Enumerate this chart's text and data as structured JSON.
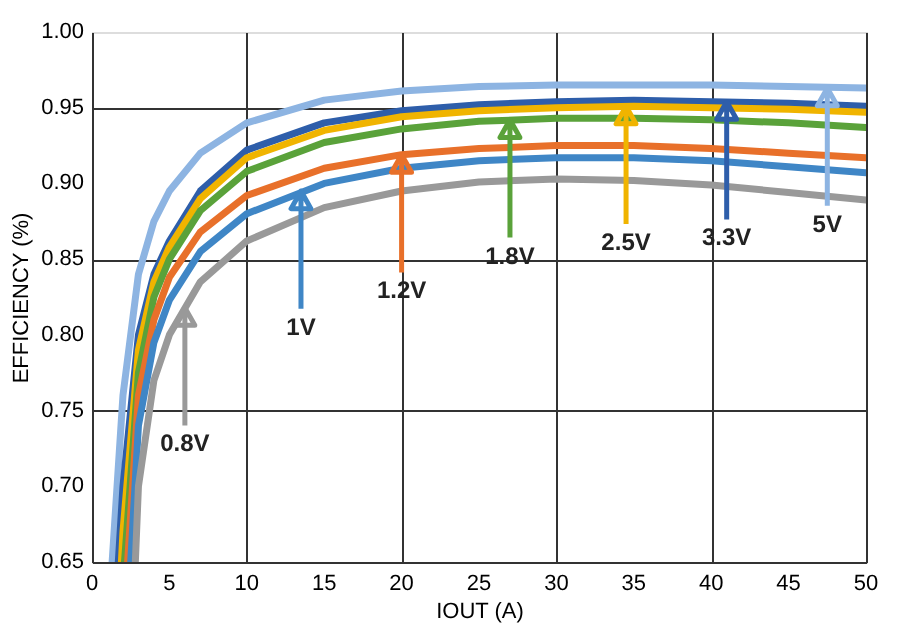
{
  "chart_data": {
    "type": "line",
    "xlabel": "IOUT (A)",
    "ylabel": "EFFICIENCY (%)",
    "xlim": [
      0,
      50
    ],
    "xticks": [
      0,
      5,
      10,
      15,
      20,
      25,
      30,
      35,
      40,
      45,
      50
    ],
    "ylim": [
      0.65,
      1.0
    ],
    "yticks": [
      0.65,
      {
        "value": 0.7,
        "label": "0.70"
      },
      0.75,
      {
        "value": 0.8,
        "label": "0.80"
      },
      0.85,
      {
        "value": 0.9,
        "label": "0.90"
      },
      0.95,
      {
        "value": 1.0,
        "label": "1.00"
      }
    ],
    "grid": true,
    "marker": "none",
    "line_style": "solid",
    "series": [
      {
        "color": "#8db4e2",
        "x": [
          1.3,
          2,
          3,
          4,
          5,
          7,
          10,
          15,
          20,
          25,
          30,
          35,
          40,
          45,
          50
        ],
        "values": [
          0.65,
          0.76,
          0.84,
          0.875,
          0.895,
          0.92,
          0.94,
          0.955,
          0.961,
          0.964,
          0.965,
          0.965,
          0.965,
          0.964,
          0.963
        ]
      },
      {
        "color": "#2e5eaa",
        "x": [
          1.7,
          2,
          3,
          4,
          5,
          7,
          10,
          15,
          20,
          25,
          30,
          35,
          40,
          45,
          50
        ],
        "values": [
          0.65,
          0.7,
          0.8,
          0.84,
          0.862,
          0.895,
          0.922,
          0.94,
          0.948,
          0.952,
          0.954,
          0.955,
          0.954,
          0.953,
          0.951
        ]
      },
      {
        "color": "#f0b400",
        "x": [
          1.9,
          2,
          3,
          4,
          5,
          7,
          10,
          15,
          20,
          25,
          30,
          35,
          40,
          45,
          50
        ],
        "values": [
          0.65,
          0.67,
          0.79,
          0.835,
          0.858,
          0.89,
          0.917,
          0.935,
          0.944,
          0.948,
          0.95,
          0.951,
          0.95,
          0.949,
          0.947
        ]
      },
      {
        "color": "#5aa23a",
        "x": [
          2.1,
          3,
          4,
          5,
          7,
          10,
          15,
          20,
          25,
          30,
          35,
          40,
          45,
          50
        ],
        "values": [
          0.65,
          0.775,
          0.825,
          0.85,
          0.882,
          0.908,
          0.927,
          0.936,
          0.941,
          0.943,
          0.943,
          0.942,
          0.94,
          0.937
        ]
      },
      {
        "color": "#e8702a",
        "x": [
          2.3,
          3,
          4,
          5,
          7,
          10,
          15,
          20,
          25,
          30,
          35,
          40,
          45,
          50
        ],
        "values": [
          0.65,
          0.76,
          0.81,
          0.838,
          0.868,
          0.892,
          0.91,
          0.919,
          0.923,
          0.925,
          0.925,
          0.923,
          0.92,
          0.917
        ]
      },
      {
        "color": "#3f86c6",
        "x": [
          2.5,
          3,
          4,
          5,
          7,
          10,
          15,
          20,
          25,
          30,
          35,
          40,
          45,
          50
        ],
        "values": [
          0.65,
          0.74,
          0.795,
          0.823,
          0.855,
          0.88,
          0.9,
          0.91,
          0.915,
          0.917,
          0.917,
          0.915,
          0.911,
          0.907
        ]
      },
      {
        "color": "#999999",
        "x": [
          2.8,
          3,
          4,
          5,
          7,
          10,
          15,
          20,
          25,
          30,
          35,
          40,
          45,
          50
        ],
        "values": [
          0.65,
          0.7,
          0.77,
          0.8,
          0.835,
          0.862,
          0.884,
          0.895,
          0.901,
          0.903,
          0.902,
          0.899,
          0.894,
          0.889
        ]
      }
    ],
    "annotations": [
      {
        "text": "5V",
        "x": 47.5,
        "y": 0.963
      },
      {
        "text": "3.3V",
        "x": 41,
        "y": 0.954
      },
      {
        "text": "2.5V",
        "x": 34.5,
        "y": 0.951
      },
      {
        "text": "1.8V",
        "x": 27,
        "y": 0.942
      },
      {
        "text": "1.2V",
        "x": 20,
        "y": 0.919
      },
      {
        "text": "1V",
        "x": 13.5,
        "y": 0.895
      },
      {
        "text": "0.8V",
        "x": 6,
        "y": 0.818
      }
    ]
  }
}
